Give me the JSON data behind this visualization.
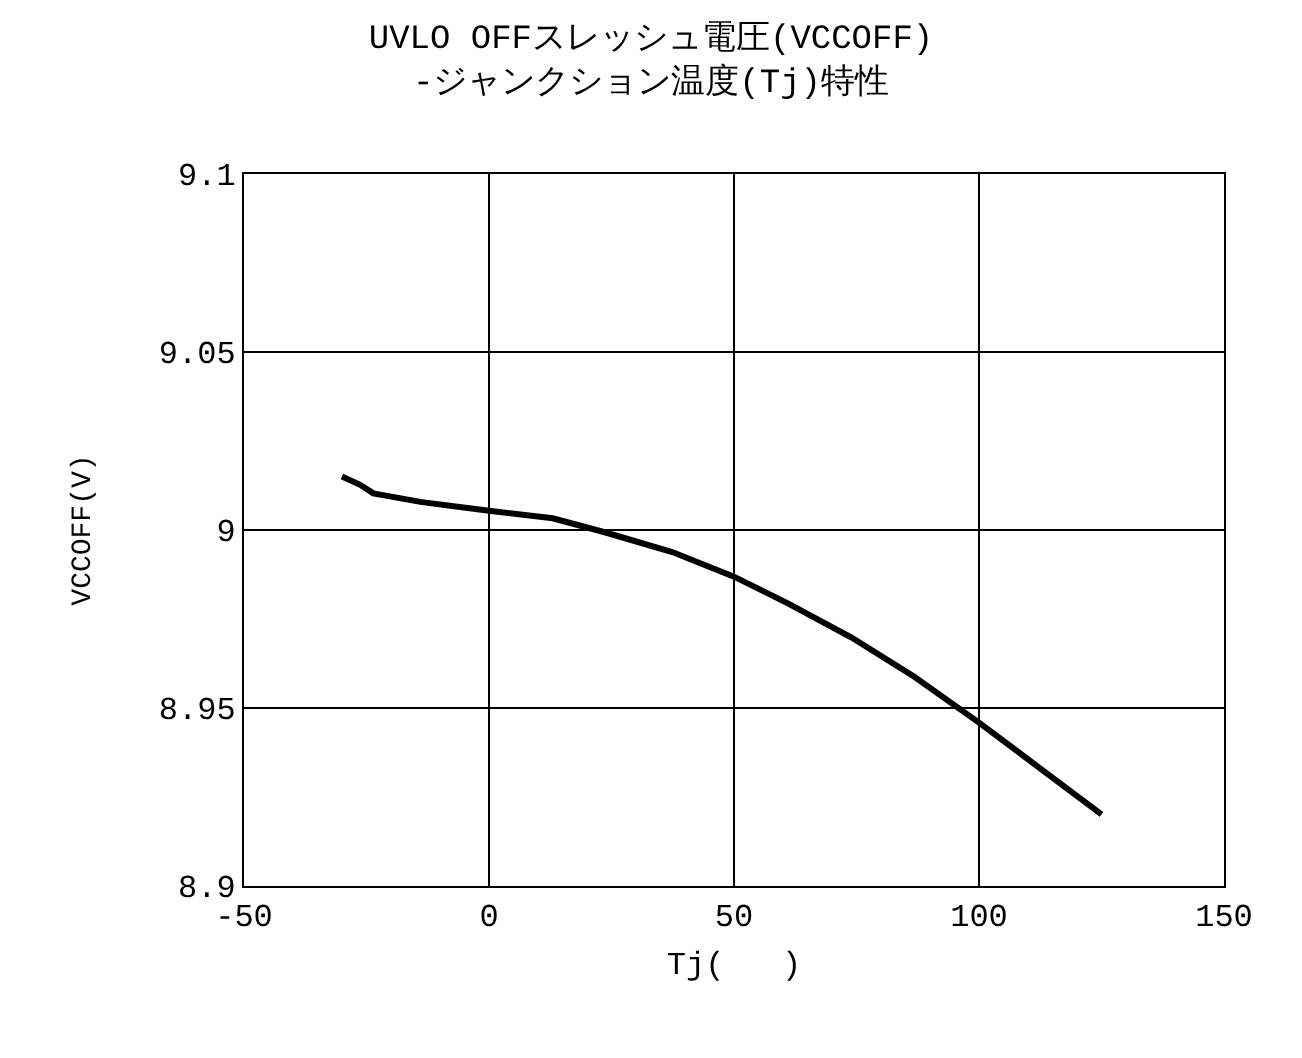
{
  "chart_data": {
    "type": "line",
    "title": "UVLO OFFスレッシュ電圧(VCCOFF)\n-ジャンクション温度(Tj)特性",
    "xlabel": "Tj(   )",
    "ylabel": "VCCOFF(V)",
    "x": [
      -30,
      -26.3,
      -23.6,
      -14,
      0,
      13,
      23.8,
      37.4,
      50,
      61,
      74,
      86.8,
      100,
      125
    ],
    "series": [
      {
        "color": "#000000",
        "values": [
          9.015,
          9.0127,
          9.0103,
          9.0079,
          9.0054,
          9.0033,
          8.9993,
          8.9938,
          8.9869,
          8.9794,
          8.9698,
          8.9588,
          8.9459,
          8.9201
        ]
      }
    ],
    "xlim": [
      -50,
      150
    ],
    "xticks": [
      -50,
      0,
      50,
      100,
      150
    ],
    "ylim": [
      8.9,
      9.1
    ],
    "yticks": [
      {
        "value": 8.9,
        "label": "8.9"
      },
      {
        "value": 8.95,
        "label": "8.95"
      },
      {
        "value": 9,
        "label": "9"
      },
      {
        "value": 9.05,
        "label": "9.05"
      },
      {
        "value": 9.1,
        "label": "9.1"
      }
    ],
    "grid": true,
    "marker": "none",
    "line_style": "solid"
  }
}
